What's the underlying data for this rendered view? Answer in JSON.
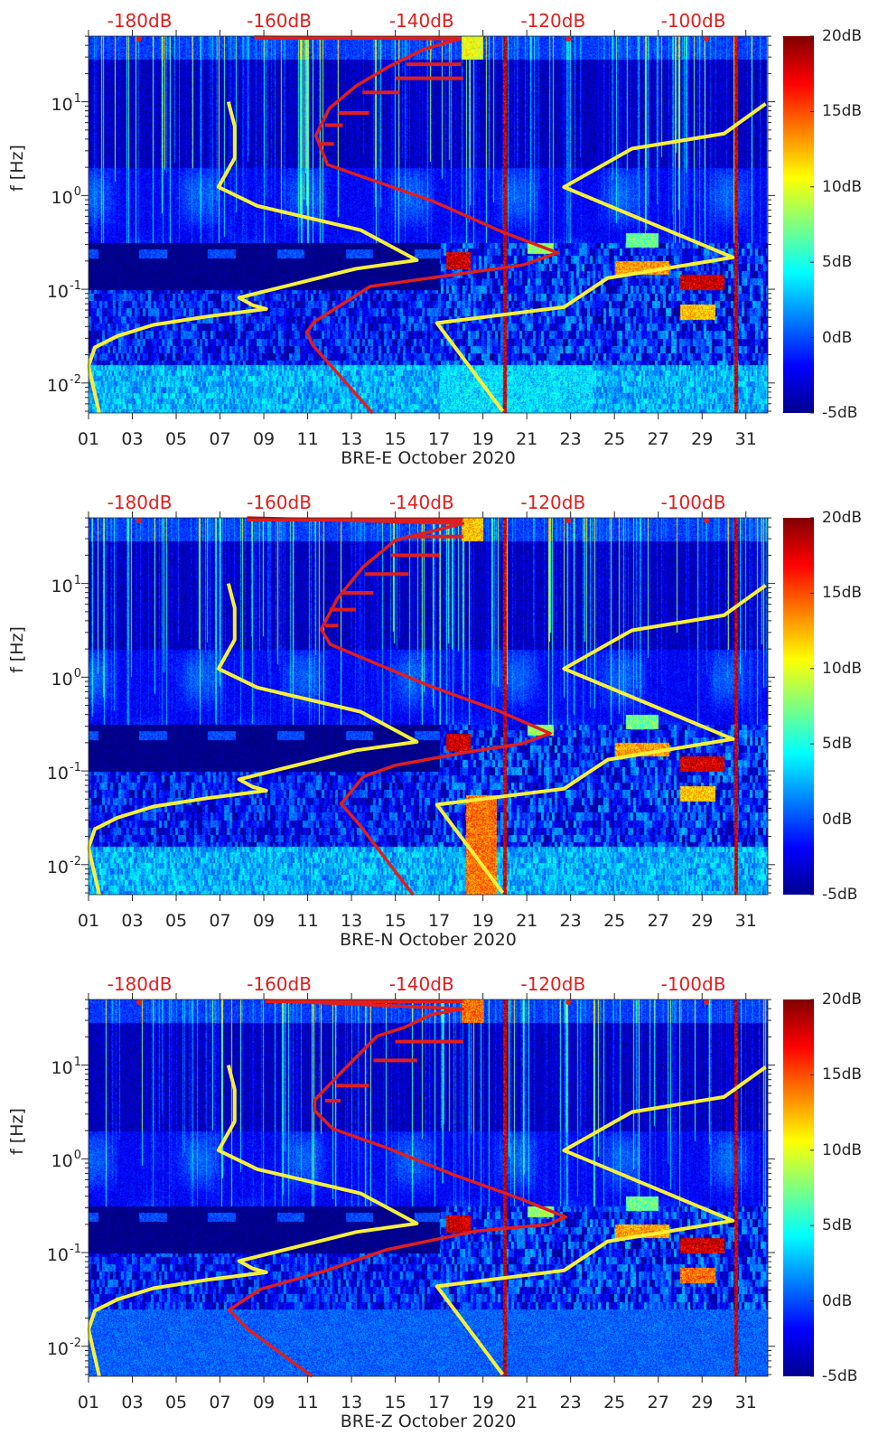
{
  "chart_data": [
    {
      "type": "heatmap",
      "title": "BRE-E October 2020",
      "xlabel": "BRE-E October 2020",
      "ylabel": "f [Hz]",
      "xlim": [
        1,
        32
      ],
      "ylim_log10": [
        -2.32,
        1.7
      ],
      "colorbar": {
        "range_dB": [
          -5,
          20
        ],
        "colormap": "jet"
      },
      "red_curve": [
        [
          8.57,
          1.69
        ],
        [
          17.95,
          1.67
        ],
        [
          16.3,
          1.56
        ],
        [
          14.66,
          1.37
        ],
        [
          13.22,
          1.17
        ],
        [
          11.99,
          0.93
        ],
        [
          11.37,
          0.64
        ],
        [
          11.9,
          0.33
        ],
        [
          16.72,
          -0.06
        ],
        [
          19.9,
          -0.39
        ],
        [
          22.4,
          -0.61
        ],
        [
          20.84,
          -0.74
        ],
        [
          15.07,
          -0.93
        ],
        [
          13.84,
          -0.97
        ],
        [
          11.29,
          -1.35
        ],
        [
          10.96,
          -1.46
        ],
        [
          11.25,
          -1.6
        ],
        [
          13.96,
          -2.32
        ]
      ],
      "red_spurs": [
        [
          15.5,
          18.0,
          1.4
        ],
        [
          15.0,
          18.1,
          1.25
        ],
        [
          13.5,
          15.2,
          1.1
        ],
        [
          12.4,
          13.8,
          0.88
        ],
        [
          11.8,
          12.6,
          0.75
        ],
        [
          11.5,
          12.2,
          0.55
        ]
      ],
      "features": [
        [
          17.3,
          18.4,
          -0.78,
          -0.6,
          20
        ],
        [
          28,
          30,
          -1.0,
          -0.84,
          20
        ],
        [
          25,
          27.5,
          -0.84,
          -0.7,
          15
        ],
        [
          28,
          29.6,
          -1.32,
          -1.16,
          14
        ],
        [
          21,
          22.2,
          -0.62,
          -0.5,
          10
        ],
        [
          25.5,
          27,
          -0.55,
          -0.4,
          9
        ],
        [
          17,
          24,
          -2.32,
          -1.8,
          5
        ],
        [
          19.9,
          20.05,
          -2.32,
          1.7,
          20
        ],
        [
          30.45,
          30.6,
          -2.32,
          1.7,
          20
        ],
        [
          18,
          19,
          1.45,
          1.7,
          12
        ]
      ]
    },
    {
      "type": "heatmap",
      "title": "BRE-N October 2020",
      "xlabel": "BRE-N October 2020",
      "ylabel": "f [Hz]",
      "xlim": [
        1,
        32
      ],
      "ylim_log10": [
        -2.32,
        1.7
      ],
      "colorbar": {
        "range_dB": [
          -5,
          20
        ],
        "colormap": "jet"
      },
      "red_curve": [
        [
          8.24,
          1.7
        ],
        [
          18.08,
          1.64
        ],
        [
          15.0,
          1.46
        ],
        [
          13.55,
          1.18
        ],
        [
          12.36,
          0.84
        ],
        [
          11.62,
          0.51
        ],
        [
          12.03,
          0.35
        ],
        [
          13.35,
          0.22
        ],
        [
          16.64,
          -0.1
        ],
        [
          19.72,
          -0.36
        ],
        [
          22.07,
          -0.6
        ],
        [
          20.75,
          -0.71
        ],
        [
          18.28,
          -0.8
        ],
        [
          15.0,
          -0.94
        ],
        [
          13.55,
          -1.06
        ],
        [
          12.52,
          -1.35
        ],
        [
          13.35,
          -1.57
        ],
        [
          15.81,
          -2.32
        ]
      ],
      "red_spurs": [
        [
          15.5,
          18.1,
          1.5
        ],
        [
          14.8,
          17.0,
          1.3
        ],
        [
          13.6,
          15.6,
          1.1
        ],
        [
          12.6,
          14.0,
          0.9
        ],
        [
          12.0,
          13.2,
          0.72
        ],
        [
          11.8,
          12.4,
          0.55
        ]
      ],
      "features": [
        [
          17.3,
          18.4,
          -0.78,
          -0.6,
          20
        ],
        [
          28,
          30,
          -1.0,
          -0.84,
          20
        ],
        [
          25,
          27.5,
          -0.84,
          -0.7,
          15
        ],
        [
          28,
          29.6,
          -1.32,
          -1.16,
          14
        ],
        [
          21,
          22.2,
          -0.62,
          -0.5,
          10
        ],
        [
          25.5,
          27,
          -0.55,
          -0.4,
          9
        ],
        [
          18.2,
          19.6,
          -2.32,
          -1.25,
          16
        ],
        [
          19.9,
          20.05,
          -2.32,
          1.7,
          20
        ],
        [
          30.45,
          30.6,
          -2.32,
          1.7,
          20
        ],
        [
          18,
          19,
          1.45,
          1.7,
          14
        ]
      ]
    },
    {
      "type": "heatmap",
      "title": "BRE-Z October 2020",
      "xlabel": "BRE-Z October 2020",
      "ylabel": "f [Hz]",
      "xlim": [
        1,
        32
      ],
      "ylim_log10": [
        -2.32,
        1.7
      ],
      "colorbar": {
        "range_dB": [
          -5,
          20
        ],
        "colormap": "jet"
      },
      "red_curve": [
        [
          9.07,
          1.69
        ],
        [
          18.08,
          1.6
        ],
        [
          16.64,
          1.54
        ],
        [
          15.4,
          1.4
        ],
        [
          14.17,
          1.31
        ],
        [
          12.52,
          0.92
        ],
        [
          11.33,
          0.63
        ],
        [
          11.33,
          0.51
        ],
        [
          12.15,
          0.32
        ],
        [
          14.58,
          0.12
        ],
        [
          17.67,
          -0.17
        ],
        [
          20.75,
          -0.43
        ],
        [
          22.77,
          -0.62
        ],
        [
          21.95,
          -0.7
        ],
        [
          18.7,
          -0.77
        ],
        [
          14.58,
          -0.97
        ],
        [
          11.74,
          -1.2
        ],
        [
          8.86,
          -1.39
        ],
        [
          7.42,
          -1.61
        ],
        [
          8.24,
          -1.81
        ],
        [
          11.2,
          -2.32
        ]
      ],
      "red_spurs": [
        [
          15.0,
          18.1,
          1.25
        ],
        [
          14.0,
          16.0,
          1.05
        ],
        [
          12.3,
          13.8,
          0.78
        ],
        [
          11.8,
          12.5,
          0.62
        ]
      ],
      "features": [
        [
          17.3,
          18.4,
          -0.78,
          -0.6,
          20
        ],
        [
          28,
          30,
          -1.0,
          -0.84,
          20
        ],
        [
          25,
          27.5,
          -0.84,
          -0.7,
          15
        ],
        [
          28,
          29.6,
          -1.32,
          -1.16,
          16
        ],
        [
          21,
          22.2,
          -0.62,
          -0.5,
          10
        ],
        [
          25.5,
          27,
          -0.55,
          -0.4,
          9
        ],
        [
          1,
          32,
          -2.32,
          -1.6,
          -0.5
        ],
        [
          19.9,
          20.05,
          -2.32,
          1.7,
          20
        ],
        [
          30.45,
          30.6,
          -2.32,
          1.7,
          20
        ],
        [
          18,
          19,
          1.45,
          1.7,
          16
        ]
      ]
    }
  ],
  "shared": {
    "yellow_curves": [
      [
        [
          7.38,
          1.0
        ],
        [
          7.67,
          0.74
        ],
        [
          7.67,
          0.4
        ],
        [
          6.93,
          0.09
        ],
        [
          8.7,
          -0.11
        ],
        [
          13.43,
          -0.37
        ],
        [
          15.98,
          -0.69
        ],
        [
          13.22,
          -0.78
        ],
        [
          7.87,
          -1.09
        ],
        [
          8.49,
          -1.17
        ],
        [
          9.11,
          -1.21
        ],
        [
          6.43,
          -1.29
        ],
        [
          3.96,
          -1.38
        ],
        [
          2.32,
          -1.5
        ],
        [
          1.29,
          -1.62
        ],
        [
          1.0,
          -1.82
        ],
        [
          1.49,
          -2.32
        ]
      ],
      [
        [
          31.9,
          0.98
        ],
        [
          30.0,
          0.66
        ],
        [
          25.8,
          0.5
        ],
        [
          22.7,
          0.09
        ],
        [
          30.4,
          -0.66
        ],
        [
          24.7,
          -0.88
        ],
        [
          22.7,
          -1.19
        ],
        [
          16.9,
          -1.36
        ],
        [
          19.9,
          -2.3
        ]
      ]
    ],
    "top_markers_days": [
      3.3,
      22.9,
      29.2
    ],
    "colors": {
      "red_curve": "#e01e1e",
      "yellow_curve": "#f7f03a",
      "axis_text": "#262626",
      "db_text": "#e01e1e"
    }
  },
  "axes": {
    "x_ticks": [
      1,
      3,
      5,
      7,
      9,
      11,
      13,
      15,
      17,
      19,
      21,
      23,
      25,
      27,
      29,
      31
    ],
    "x_tick_labels": [
      "01",
      "03",
      "05",
      "07",
      "09",
      "11",
      "13",
      "15",
      "17",
      "19",
      "21",
      "23",
      "25",
      "27",
      "29",
      "31"
    ],
    "y_tick_log10": [
      1,
      0,
      -1,
      -2
    ],
    "y_tick_labels": [
      {
        "base": "10",
        "exp": "1"
      },
      {
        "base": "10",
        "exp": "0"
      },
      {
        "base": "10",
        "exp": "-1"
      },
      {
        "base": "10",
        "exp": "-2"
      }
    ],
    "db_labels": [
      "-180dB",
      "-160dB",
      "-140dB",
      "-120dB",
      "-100dB"
    ],
    "db_label_days": [
      3.33,
      9.7,
      16.2,
      22.2,
      28.6
    ],
    "colorbar_values": [
      20,
      15,
      10,
      5,
      0,
      -5
    ],
    "colorbar_labels": [
      "20dB",
      "15dB",
      "10dB",
      "5dB",
      "0dB",
      "-5dB"
    ]
  }
}
